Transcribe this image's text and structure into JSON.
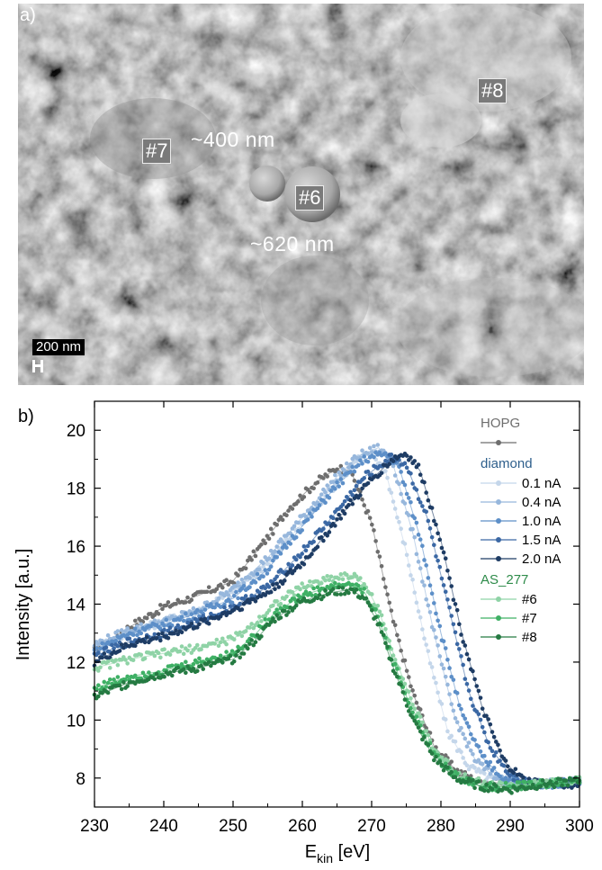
{
  "panel_a": {
    "label": "a)",
    "markers": [
      {
        "id": "m7",
        "text": "#7"
      },
      {
        "id": "m6",
        "text": "#6"
      },
      {
        "id": "m8",
        "text": "#8"
      }
    ],
    "annotations": {
      "small_particle": "~400 nm",
      "large_particle": "~620 nm"
    },
    "scale_bar": "200 nm"
  },
  "panel_b": {
    "label": "b)"
  },
  "chart_data": {
    "type": "scatter",
    "xlabel_main": "E",
    "xlabel_sub": "kin",
    "xlabel_unit": " [eV]",
    "ylabel": "Intensity [a.u.]",
    "xlim": [
      230,
      300
    ],
    "ylim": [
      7,
      21
    ],
    "xticks": [
      230,
      240,
      250,
      260,
      270,
      280,
      290,
      300
    ],
    "yticks": [
      8,
      10,
      12,
      14,
      16,
      18,
      20
    ],
    "grid": false,
    "legend_position": "top-right",
    "legend_groups": [
      {
        "title": "HOPG",
        "title_color": "#6e6e6e",
        "entries": [
          {
            "name": "",
            "color": "#6e6e6e"
          }
        ]
      },
      {
        "title": "diamond",
        "title_color": "#2e5f8c",
        "entries": [
          {
            "name": "0.1 nA",
            "color": "#c4d6ea"
          },
          {
            "name": "0.4 nA",
            "color": "#97b7dc"
          },
          {
            "name": "1.0 nA",
            "color": "#5d8fc8"
          },
          {
            "name": "1.5 nA",
            "color": "#3b68a4"
          },
          {
            "name": "2.0 nA",
            "color": "#1e3c64"
          }
        ]
      },
      {
        "title": "AS_277",
        "title_color": "#2e8b4a",
        "entries": [
          {
            "name": "#6",
            "color": "#8fd3a6"
          },
          {
            "name": "#7",
            "color": "#3fb065"
          },
          {
            "name": "#8",
            "color": "#257a42"
          }
        ]
      }
    ],
    "series": [
      {
        "name": "HOPG",
        "color": "#6e6e6e",
        "x": [
          230,
          235,
          240,
          245,
          250,
          255,
          258,
          262,
          265,
          267,
          270,
          273,
          276,
          279,
          282,
          285,
          290,
          295,
          300
        ],
        "y": [
          12.4,
          13.2,
          13.9,
          14.3,
          14.8,
          16.3,
          17.3,
          18.2,
          18.7,
          18.6,
          16.8,
          13.5,
          10.9,
          9.1,
          8.3,
          7.9,
          7.8,
          7.8,
          7.9
        ]
      },
      {
        "name": "0.1 nA",
        "color": "#c4d6ea",
        "x": [
          230,
          235,
          240,
          245,
          250,
          255,
          260,
          265,
          268,
          270,
          272,
          275,
          278,
          281,
          284,
          287,
          290,
          295,
          300
        ],
        "y": [
          12.5,
          13.0,
          13.4,
          13.8,
          14.4,
          15.4,
          16.8,
          18.2,
          19.0,
          19.2,
          18.6,
          15.8,
          12.4,
          9.6,
          8.4,
          8.0,
          7.8,
          7.8,
          7.9
        ]
      },
      {
        "name": "0.4 nA",
        "color": "#97b7dc",
        "x": [
          230,
          235,
          240,
          245,
          250,
          255,
          260,
          265,
          268,
          271,
          273,
          276,
          279,
          282,
          285,
          288,
          291,
          295,
          300
        ],
        "y": [
          12.6,
          13.1,
          13.4,
          13.8,
          14.5,
          15.6,
          17.0,
          18.4,
          19.1,
          19.4,
          18.9,
          16.4,
          13.0,
          10.1,
          8.6,
          8.0,
          7.8,
          7.8,
          7.9
        ]
      },
      {
        "name": "1.0 nA",
        "color": "#5d8fc8",
        "x": [
          230,
          235,
          240,
          245,
          250,
          255,
          260,
          265,
          269,
          272,
          274,
          277,
          280,
          283,
          286,
          289,
          292,
          296,
          300
        ],
        "y": [
          12.4,
          13.0,
          13.3,
          13.7,
          14.2,
          15.2,
          16.7,
          18.1,
          19.0,
          19.2,
          18.7,
          16.3,
          13.0,
          10.2,
          8.7,
          8.0,
          7.8,
          7.8,
          7.9
        ]
      },
      {
        "name": "1.5 nA",
        "color": "#3b68a4",
        "x": [
          230,
          235,
          240,
          245,
          250,
          255,
          260,
          265,
          269,
          273,
          275,
          278,
          281,
          284,
          287,
          290,
          293,
          296,
          300
        ],
        "y": [
          12.2,
          12.7,
          13.0,
          13.4,
          13.9,
          14.6,
          15.8,
          17.2,
          18.4,
          19.1,
          18.8,
          17.0,
          14.0,
          11.0,
          9.1,
          8.1,
          7.8,
          7.8,
          7.9
        ]
      },
      {
        "name": "2.0 nA",
        "color": "#1e3c64",
        "x": [
          230,
          235,
          240,
          245,
          250,
          255,
          260,
          265,
          270,
          273,
          275,
          277,
          280,
          283,
          286,
          289,
          292,
          295,
          300
        ],
        "y": [
          12.0,
          12.6,
          12.9,
          13.3,
          13.8,
          14.4,
          15.4,
          16.9,
          18.3,
          19.0,
          19.2,
          18.6,
          16.2,
          13.0,
          10.4,
          8.6,
          7.9,
          7.8,
          7.8
        ]
      },
      {
        "name": "#6",
        "color": "#8fd3a6",
        "x": [
          230,
          235,
          240,
          245,
          250,
          253,
          256,
          260,
          264,
          267,
          269,
          271,
          273,
          276,
          279,
          282,
          286,
          290,
          295,
          300
        ],
        "y": [
          11.8,
          12.1,
          12.3,
          12.5,
          12.8,
          13.3,
          14.0,
          14.6,
          14.9,
          15.0,
          14.7,
          13.8,
          12.4,
          10.5,
          9.0,
          8.2,
          7.8,
          7.7,
          7.8,
          7.9
        ]
      },
      {
        "name": "#7",
        "color": "#3fb065",
        "x": [
          230,
          235,
          240,
          245,
          250,
          253,
          256,
          260,
          264,
          267,
          269,
          271,
          273,
          276,
          279,
          282,
          286,
          290,
          295,
          300
        ],
        "y": [
          11.1,
          11.5,
          11.7,
          12.0,
          12.3,
          12.9,
          13.7,
          14.3,
          14.6,
          14.7,
          14.4,
          13.5,
          12.1,
          10.2,
          8.8,
          8.1,
          7.7,
          7.7,
          7.8,
          7.9
        ]
      },
      {
        "name": "#8",
        "color": "#257a42",
        "x": [
          230,
          235,
          240,
          245,
          250,
          253,
          256,
          260,
          264,
          267,
          269,
          271,
          273,
          276,
          279,
          282,
          286,
          290,
          295,
          300
        ],
        "y": [
          10.8,
          11.3,
          11.6,
          11.8,
          12.1,
          12.7,
          13.5,
          14.1,
          14.4,
          14.5,
          14.2,
          13.3,
          11.9,
          10.0,
          8.7,
          8.0,
          7.7,
          7.6,
          7.8,
          7.9
        ]
      }
    ]
  }
}
